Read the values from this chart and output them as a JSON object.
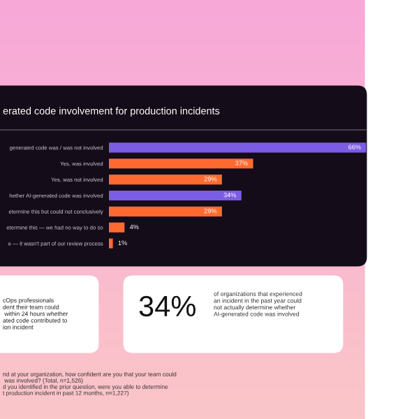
{
  "chart_data": {
    "type": "bar",
    "orientation": "horizontal",
    "title": "erated code involvement for production incidents",
    "categories": [
      "generated code was / was not involved",
      "Yes, was involved",
      "Yes, was not involved",
      "hether AI-generated code was involved",
      "etermine this but could not conclusively",
      "etermine this — we had no way to do so",
      "e — it wasn't part of our review process"
    ],
    "values": [
      66,
      37,
      29,
      34,
      29,
      4,
      1
    ],
    "colors": [
      "#7b5ce4",
      "#ff6a30",
      "#ff6a30",
      "#7b5ce4",
      "#ff6a30",
      "#ff6a30",
      "#ff6a30"
    ],
    "value_labels": [
      "66%",
      "37%",
      "29%",
      "34%",
      "29%",
      "4%",
      "1%"
    ],
    "grid": false,
    "legend": false,
    "annotations": [
      "cOps professionals\ndent their team could\n within 24 hours whether\nated code contributed to\nion incident",
      "34%",
      "of organizations that experienced\nan incident in the past year could\nnot actually determine whether\nAI-generated code was involved",
      "nd at your organization, how confident are you that your team could\n was involved? (Total, n=1,526)\nd you identified in the prior question, were you able to determine\nt production incident in past 12 months, n=1,227)"
    ]
  }
}
